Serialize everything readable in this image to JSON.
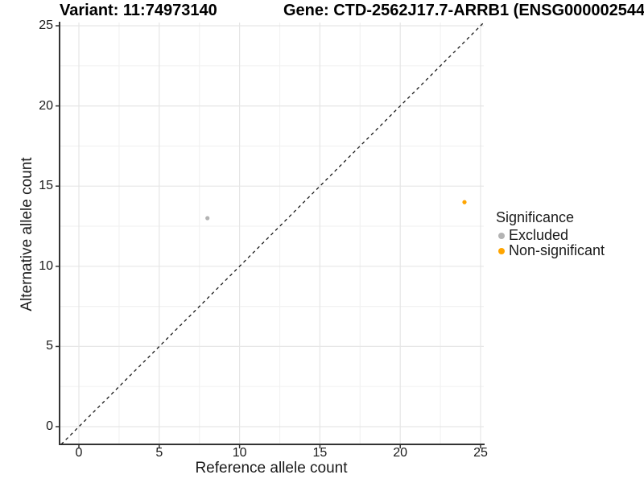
{
  "chart_data": {
    "type": "scatter",
    "title_left": "Variant: 11:74973140",
    "title_right": "Gene: CTD-2562J17.7-ARRB1 (ENSG000002544",
    "xlabel": "Reference allele count",
    "ylabel": "Alternative allele count",
    "xlim": [
      -1.2,
      25.2
    ],
    "ylim": [
      -1.1,
      25.2
    ],
    "x_ticks": [
      0,
      5,
      10,
      15,
      20,
      25
    ],
    "y_ticks": [
      0,
      5,
      10,
      15,
      20,
      25
    ],
    "minor_gridlines": [
      2.5,
      7.5,
      12.5,
      17.5,
      22.5
    ],
    "grid": "major and minor gridlines, light gray, both axes",
    "legend": {
      "title": "Significance",
      "position": "right"
    },
    "series": [
      {
        "name": "Excluded",
        "color": "#b3b3b3",
        "points": [
          [
            8,
            13
          ]
        ]
      },
      {
        "name": "Non-significant",
        "color": "#ffa500",
        "points": [
          [
            24,
            14
          ]
        ]
      }
    ],
    "identity_line": {
      "description": "y = x dashed reference line, corner to corner",
      "color": "#1a1a1a",
      "dash": [
        4,
        4
      ]
    },
    "style": {
      "background": "#ffffff",
      "axis_color": "#333333",
      "grid_major_color": "#e6e6e6",
      "grid_minor_color": "#f2f2f2",
      "text_color": "#1a1a1a"
    }
  }
}
